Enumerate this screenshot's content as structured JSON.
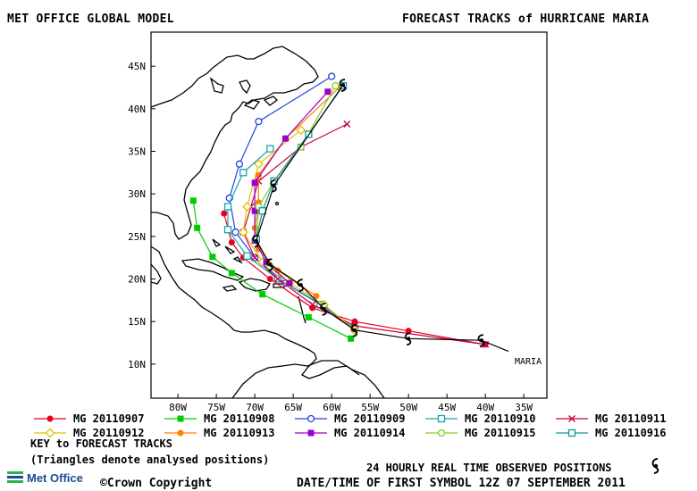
{
  "header": {
    "left_title": "MET OFFICE GLOBAL MODEL",
    "right_title": "FORECAST TRACKS of HURRICANE MARIA"
  },
  "map": {
    "lat_labels": [
      "45N",
      "40N",
      "35N",
      "30N",
      "25N",
      "20N",
      "15N",
      "10N"
    ],
    "lon_labels": [
      "80W",
      "75W",
      "70W",
      "65W",
      "60W",
      "55W",
      "50W",
      "45W",
      "40W",
      "35W"
    ],
    "storm_label": "MARIA",
    "extent": {
      "lon_min": -83.5,
      "lon_max": -32,
      "lat_min": 6,
      "lat_max": 49
    }
  },
  "tracks": [
    {
      "name": "MG 20110907",
      "color": "#e8001c",
      "marker": "filled-circle",
      "points": [
        [
          -40,
          12.3
        ],
        [
          -50,
          13.9
        ],
        [
          -57,
          15
        ],
        [
          -62.5,
          16.6
        ],
        [
          -68,
          20
        ],
        [
          -71.5,
          22.5
        ],
        [
          -73,
          24.3
        ],
        [
          -74,
          27.7
        ]
      ]
    },
    {
      "name": "MG 20110908",
      "color": "#00cc00",
      "marker": "filled-square",
      "points": [
        [
          -57.5,
          13
        ],
        [
          -63,
          15.5
        ],
        [
          -69,
          18.2
        ],
        [
          -73,
          20.7
        ],
        [
          -75.5,
          22.6
        ],
        [
          -77.5,
          26
        ],
        [
          -78,
          29.2
        ]
      ]
    },
    {
      "name": "MG 20110909",
      "color": "#2244dd",
      "marker": "open-circle",
      "points": [
        [
          -57,
          14
        ],
        [
          -61,
          16.8
        ],
        [
          -66,
          19.5
        ],
        [
          -70,
          22.5
        ],
        [
          -72.5,
          25.5
        ],
        [
          -73.3,
          29.5
        ],
        [
          -72,
          33.5
        ],
        [
          -69.5,
          38.5
        ],
        [
          -60,
          43.8
        ]
      ]
    },
    {
      "name": "MG 20110910",
      "color": "#14a5b0",
      "marker": "open-square",
      "points": [
        [
          -57,
          14.2
        ],
        [
          -61.5,
          17
        ],
        [
          -67,
          20
        ],
        [
          -71,
          22.7
        ],
        [
          -73.5,
          25.8
        ],
        [
          -73.5,
          28.5
        ],
        [
          -71.5,
          32.5
        ],
        [
          -68,
          35.3
        ]
      ]
    },
    {
      "name": "MG 20110911",
      "color": "#cc0044",
      "marker": "cross",
      "points": [
        [
          -40,
          12.3
        ],
        [
          -57,
          14.5
        ],
        [
          -62.5,
          17
        ],
        [
          -67,
          20
        ],
        [
          -70,
          22.5
        ],
        [
          -71.5,
          25.5
        ],
        [
          -70.5,
          28.5
        ],
        [
          -69.5,
          31.5
        ],
        [
          -64,
          35.5
        ],
        [
          -58,
          38.2
        ]
      ]
    },
    {
      "name": "MG 20110912",
      "color": "#e0c000",
      "marker": "open-diamond",
      "points": [
        [
          -57,
          14
        ],
        [
          -61,
          17
        ],
        [
          -65.5,
          19.5
        ],
        [
          -69,
          22
        ],
        [
          -71.5,
          25.5
        ],
        [
          -71,
          28.5
        ],
        [
          -69.5,
          33.5
        ],
        [
          -64,
          37.5
        ]
      ]
    },
    {
      "name": "MG 20110913",
      "color": "#ff7f00",
      "marker": "filled-circle",
      "points": [
        [
          -62,
          18
        ],
        [
          -67,
          21
        ],
        [
          -69.5,
          23.5
        ],
        [
          -70,
          26
        ],
        [
          -69.5,
          29
        ],
        [
          -69.5,
          32.2
        ],
        [
          -66,
          36.5
        ],
        [
          -59,
          42.5
        ]
      ]
    },
    {
      "name": "MG 20110914",
      "color": "#9900cc",
      "marker": "filled-square",
      "points": [
        [
          -65.5,
          19.5
        ],
        [
          -68.5,
          22
        ],
        [
          -70,
          24.5
        ],
        [
          -70,
          28
        ],
        [
          -70,
          31.3
        ],
        [
          -66,
          36.5
        ],
        [
          -60.5,
          42
        ]
      ]
    },
    {
      "name": "MG 20110915",
      "color": "#88cc22",
      "marker": "open-circle",
      "points": [
        [
          -68,
          21.5
        ],
        [
          -69.8,
          24.7
        ],
        [
          -69.5,
          28.5
        ],
        [
          -67.5,
          31.5
        ],
        [
          -64,
          35.5
        ],
        [
          -59.5,
          42.7
        ]
      ]
    },
    {
      "name": "MG 20110916",
      "color": "#119999",
      "marker": "open-square",
      "points": [
        [
          -69.8,
          24.7
        ],
        [
          -69,
          28
        ],
        [
          -67.5,
          31.5
        ],
        [
          -63,
          37
        ],
        [
          -58.5,
          42.7
        ]
      ]
    }
  ],
  "observed_track": {
    "color": "#000000",
    "points": [
      [
        -37,
        11.5
      ],
      [
        -40.5,
        12.8
      ],
      [
        -50,
        13
      ],
      [
        -57,
        14
      ],
      [
        -61,
        16.5
      ],
      [
        -64,
        19.3
      ],
      [
        -68,
        21.7
      ],
      [
        -69.8,
        24.5
      ],
      [
        -67.5,
        31
      ],
      [
        -58.5,
        42.8
      ]
    ]
  },
  "legend": {
    "key_title": "KEY to FORECAST TRACKS",
    "key_note": "(Triangles denote analysed positions)"
  },
  "footer": {
    "observed_note": "24 HOURLY REAL TIME OBSERVED POSITIONS",
    "logo_text": "Met Office",
    "copyright": "©Crown Copyright",
    "datetime": "DATE/TIME OF FIRST SYMBOL 12Z 07 SEPTEMBER 2011"
  }
}
